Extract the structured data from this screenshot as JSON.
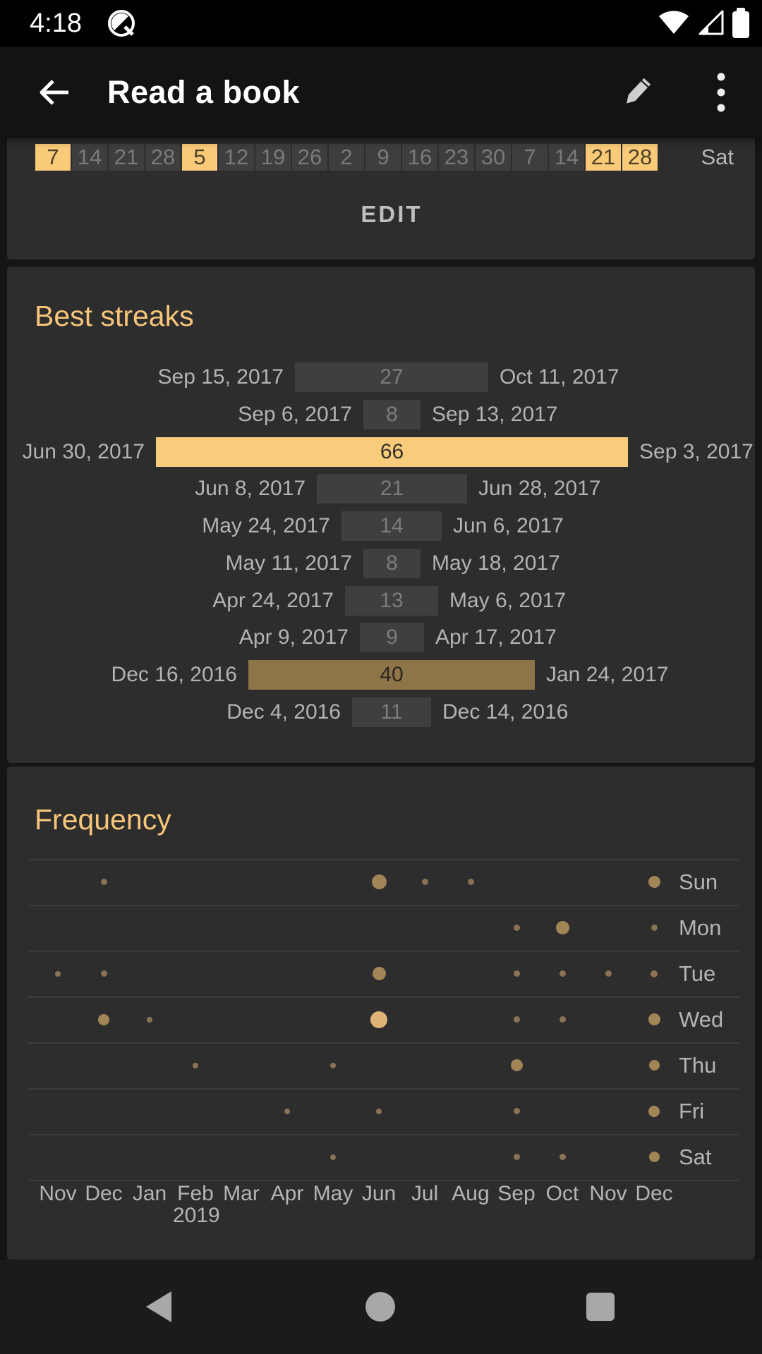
{
  "status_bar": {
    "time": "4:18",
    "icons": [
      "android-q-notification",
      "wifi-full",
      "cell-signal",
      "battery-full"
    ]
  },
  "app_bar": {
    "title": "Read a book"
  },
  "calendar_card": {
    "weekday_label": "Sat",
    "edit_label": "EDIT",
    "days": [
      {
        "label": "7",
        "checked": true
      },
      {
        "label": "14",
        "checked": false
      },
      {
        "label": "21",
        "checked": false
      },
      {
        "label": "28",
        "checked": false
      },
      {
        "label": "5",
        "checked": true
      },
      {
        "label": "12",
        "checked": false
      },
      {
        "label": "19",
        "checked": false
      },
      {
        "label": "26",
        "checked": false
      },
      {
        "label": "2",
        "checked": false
      },
      {
        "label": "9",
        "checked": false
      },
      {
        "label": "16",
        "checked": false
      },
      {
        "label": "23",
        "checked": false
      },
      {
        "label": "30",
        "checked": false
      },
      {
        "label": "7",
        "checked": false
      },
      {
        "label": "14",
        "checked": false
      },
      {
        "label": "21",
        "checked": true
      },
      {
        "label": "28",
        "checked": true
      }
    ]
  },
  "best_streaks": {
    "title": "Best streaks",
    "streaks": [
      {
        "start": "Sep 15, 2017",
        "days": 27,
        "end": "Oct 11, 2017",
        "tone": "gray"
      },
      {
        "start": "Sep 6, 2017",
        "days": 8,
        "end": "Sep 13, 2017",
        "tone": "gray"
      },
      {
        "start": "Jun 30, 2017",
        "days": 66,
        "end": "Sep 3, 2017",
        "tone": "bright"
      },
      {
        "start": "Jun 8, 2017",
        "days": 21,
        "end": "Jun 28, 2017",
        "tone": "gray"
      },
      {
        "start": "May 24, 2017",
        "days": 14,
        "end": "Jun 6, 2017",
        "tone": "gray"
      },
      {
        "start": "May 11, 2017",
        "days": 8,
        "end": "May 18, 2017",
        "tone": "gray"
      },
      {
        "start": "Apr 24, 2017",
        "days": 13,
        "end": "May 6, 2017",
        "tone": "gray"
      },
      {
        "start": "Apr 9, 2017",
        "days": 9,
        "end": "Apr 17, 2017",
        "tone": "gray"
      },
      {
        "start": "Dec 16, 2016",
        "days": 40,
        "end": "Jan 24, 2017",
        "tone": "medium"
      },
      {
        "start": "Dec 4, 2016",
        "days": 11,
        "end": "Dec 14, 2016",
        "tone": "gray"
      }
    ]
  },
  "frequency": {
    "title": "Frequency",
    "months": [
      "Nov",
      "Dec",
      "Jan",
      "Feb",
      "Mar",
      "Apr",
      "May",
      "Jun",
      "Jul",
      "Aug",
      "Sep",
      "Oct",
      "Nov",
      "Dec"
    ],
    "year_label": {
      "text": "2019",
      "month_index": 3
    },
    "weekdays": [
      "Sun",
      "Mon",
      "Tue",
      "Wed",
      "Thu",
      "Fri",
      "Sat"
    ],
    "dots": [
      {
        "weekday": 0,
        "month": 1,
        "size": 9,
        "tone": "muted"
      },
      {
        "weekday": 0,
        "month": 7,
        "size": 21,
        "tone": "medium"
      },
      {
        "weekday": 0,
        "month": 8,
        "size": 9,
        "tone": "muted"
      },
      {
        "weekday": 0,
        "month": 9,
        "size": 9,
        "tone": "muted"
      },
      {
        "weekday": 0,
        "month": 13,
        "size": 17,
        "tone": "medium"
      },
      {
        "weekday": 1,
        "month": 10,
        "size": 9,
        "tone": "muted"
      },
      {
        "weekday": 1,
        "month": 11,
        "size": 19,
        "tone": "medium"
      },
      {
        "weekday": 1,
        "month": 13,
        "size": 9,
        "tone": "muted"
      },
      {
        "weekday": 2,
        "month": 0,
        "size": 8,
        "tone": "muted"
      },
      {
        "weekday": 2,
        "month": 1,
        "size": 9,
        "tone": "muted"
      },
      {
        "weekday": 2,
        "month": 7,
        "size": 19,
        "tone": "medium"
      },
      {
        "weekday": 2,
        "month": 10,
        "size": 9,
        "tone": "muted"
      },
      {
        "weekday": 2,
        "month": 11,
        "size": 9,
        "tone": "muted"
      },
      {
        "weekday": 2,
        "month": 12,
        "size": 9,
        "tone": "muted"
      },
      {
        "weekday": 2,
        "month": 13,
        "size": 10,
        "tone": "muted"
      },
      {
        "weekday": 3,
        "month": 1,
        "size": 16,
        "tone": "medium"
      },
      {
        "weekday": 3,
        "month": 2,
        "size": 8,
        "tone": "muted"
      },
      {
        "weekday": 3,
        "month": 7,
        "size": 24,
        "tone": "bright"
      },
      {
        "weekday": 3,
        "month": 10,
        "size": 9,
        "tone": "muted"
      },
      {
        "weekday": 3,
        "month": 11,
        "size": 9,
        "tone": "muted"
      },
      {
        "weekday": 3,
        "month": 13,
        "size": 17,
        "tone": "medium"
      },
      {
        "weekday": 4,
        "month": 3,
        "size": 8,
        "tone": "muted"
      },
      {
        "weekday": 4,
        "month": 6,
        "size": 8,
        "tone": "muted"
      },
      {
        "weekday": 4,
        "month": 10,
        "size": 17,
        "tone": "medium"
      },
      {
        "weekday": 4,
        "month": 13,
        "size": 15,
        "tone": "medium"
      },
      {
        "weekday": 5,
        "month": 5,
        "size": 8,
        "tone": "muted"
      },
      {
        "weekday": 5,
        "month": 7,
        "size": 8,
        "tone": "muted"
      },
      {
        "weekday": 5,
        "month": 10,
        "size": 9,
        "tone": "muted"
      },
      {
        "weekday": 5,
        "month": 13,
        "size": 16,
        "tone": "medium"
      },
      {
        "weekday": 6,
        "month": 6,
        "size": 8,
        "tone": "muted"
      },
      {
        "weekday": 6,
        "month": 10,
        "size": 9,
        "tone": "muted"
      },
      {
        "weekday": 6,
        "month": 11,
        "size": 9,
        "tone": "muted"
      },
      {
        "weekday": 6,
        "month": 13,
        "size": 15,
        "tone": "medium"
      }
    ]
  },
  "nav_bar": {
    "buttons": [
      "back",
      "home",
      "recents"
    ]
  },
  "colors": {
    "accent": "#F6C57A",
    "streak_bright": "#F9CC7C",
    "streak_medium": "#8D7449",
    "streak_gray": "#3F3F3F",
    "dot_muted": "#8A7355",
    "dot_medium": "#A18556",
    "dot_bright": "#DFB376"
  }
}
